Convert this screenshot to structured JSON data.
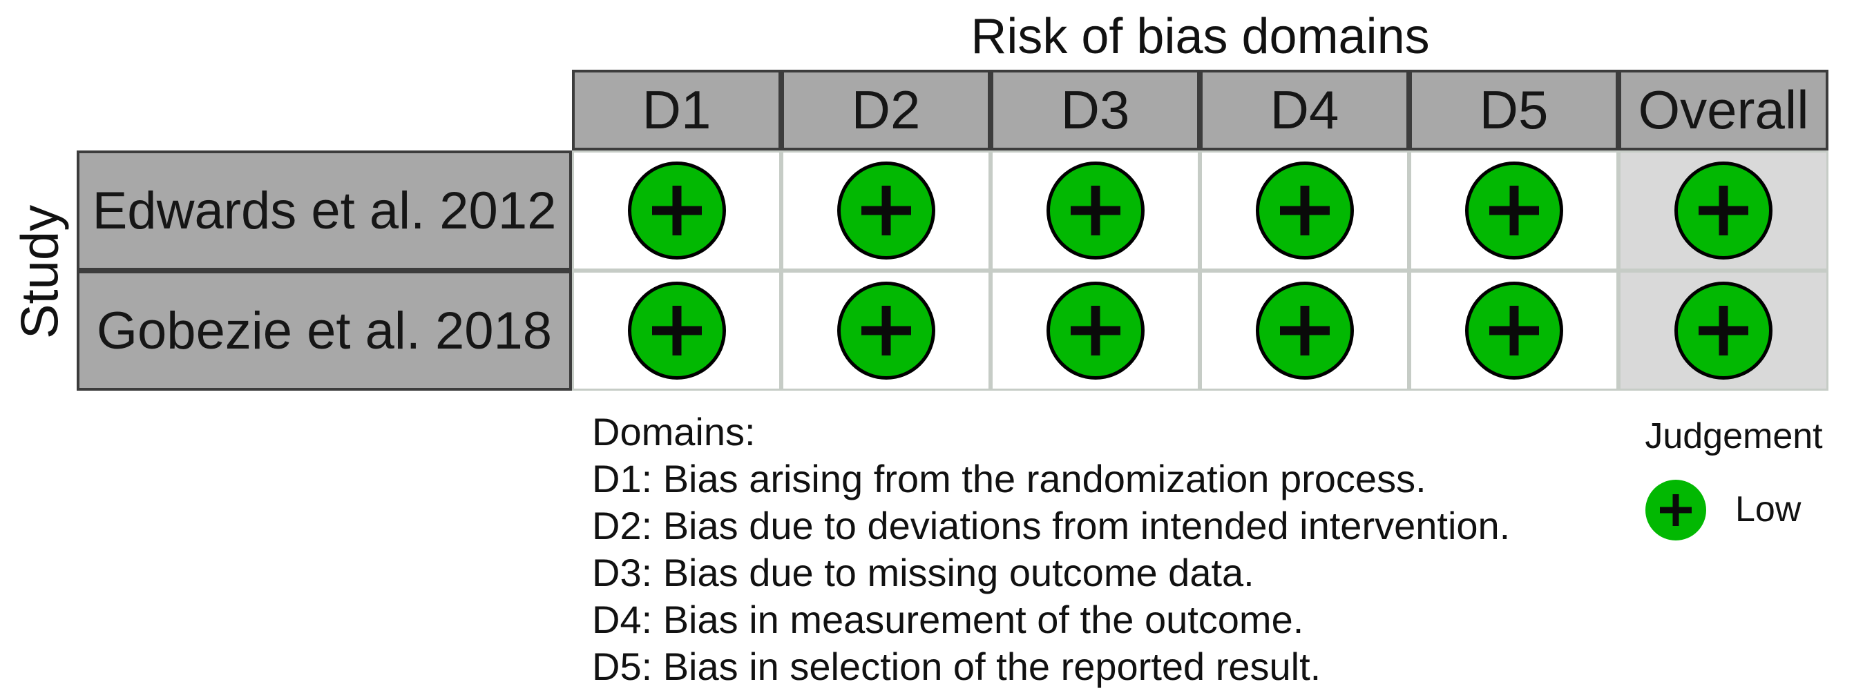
{
  "chart_data": {
    "type": "table",
    "title": "Risk of bias domains",
    "y_axis_label": "Study",
    "x_categories": [
      "D1",
      "D2",
      "D3",
      "D4",
      "D5",
      "Overall"
    ],
    "y_categories": [
      "Edwards et al. 2012",
      "Gobezie et al. 2018"
    ],
    "values": [
      [
        "Low",
        "Low",
        "Low",
        "Low",
        "Low",
        "Low"
      ],
      [
        "Low",
        "Low",
        "Low",
        "Low",
        "Low",
        "Low"
      ]
    ],
    "marker_symbol": "+",
    "legend": {
      "title": "Judgement",
      "entries": [
        {
          "label": "Low",
          "symbol": "plus-circle",
          "color": "#02b802"
        }
      ]
    },
    "layout": {
      "grid": true,
      "legend_position": "bottom-right"
    }
  },
  "footer": {
    "heading": "Domains:",
    "lines": [
      "D1: Bias arising from the randomization process.",
      "D2: Bias due to deviations from intended intervention.",
      "D3: Bias due to missing outcome data.",
      "D4: Bias in measurement of the outcome.",
      "D5: Bias in selection of the reported result."
    ]
  },
  "colors": {
    "low_risk_green": "#02b802",
    "header_gray": "#a8a8a8",
    "overall_column_gray": "#d9d9d9",
    "grid_line_light": "#c6ccc6",
    "table_border_dark": "#3c3c3c",
    "marker_symbol_black": "#0a0a0a"
  }
}
